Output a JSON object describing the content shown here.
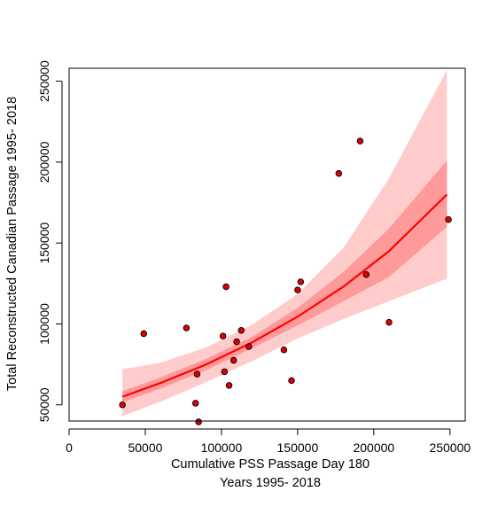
{
  "chart_data": {
    "type": "scatter",
    "title": "",
    "xlabel": "Cumulative PSS Passage Day  180",
    "xlabel2": "Years 1995- 2018",
    "ylabel": "Total Reconstructed Canadian Passage 1995- 2018",
    "xlim": [
      0,
      260000
    ],
    "ylim": [
      40000,
      258000
    ],
    "x_ticks": [
      "0",
      "50000",
      "100000",
      "150000",
      "200000",
      "250000"
    ],
    "y_ticks": [
      "50000",
      "100000",
      "150000",
      "200000",
      "250000"
    ],
    "grid": false,
    "colors": {
      "points": "#e00000",
      "point_border": "#000000",
      "fit_line": "#ff0000",
      "band_inner": "#ff9a9a",
      "band_outer": "#ffcccc"
    },
    "points": [
      {
        "x": 35000,
        "y": 50000
      },
      {
        "x": 49000,
        "y": 94000
      },
      {
        "x": 77000,
        "y": 97500
      },
      {
        "x": 83000,
        "y": 51000
      },
      {
        "x": 84000,
        "y": 69000
      },
      {
        "x": 85000,
        "y": 39500
      },
      {
        "x": 101000,
        "y": 92500
      },
      {
        "x": 102000,
        "y": 70500
      },
      {
        "x": 103000,
        "y": 123000
      },
      {
        "x": 105000,
        "y": 62000
      },
      {
        "x": 108000,
        "y": 77500
      },
      {
        "x": 110000,
        "y": 89000
      },
      {
        "x": 113000,
        "y": 96000
      },
      {
        "x": 118000,
        "y": 86000
      },
      {
        "x": 141000,
        "y": 84000
      },
      {
        "x": 146000,
        "y": 65000
      },
      {
        "x": 150000,
        "y": 121000
      },
      {
        "x": 152000,
        "y": 126000
      },
      {
        "x": 177000,
        "y": 193000
      },
      {
        "x": 191000,
        "y": 213000
      },
      {
        "x": 195000,
        "y": 130500
      },
      {
        "x": 210000,
        "y": 101000
      },
      {
        "x": 249000,
        "y": 164500
      }
    ],
    "fit": {
      "x": [
        35000,
        60000,
        90000,
        120000,
        150000,
        180000,
        210000,
        248000
      ],
      "y": [
        55000,
        63500,
        75000,
        88500,
        104500,
        123000,
        145000,
        180000
      ],
      "inner_lower": [
        51500,
        60000,
        71500,
        85000,
        99000,
        114000,
        129000,
        160000
      ],
      "inner_upper": [
        58500,
        67000,
        78500,
        92000,
        110000,
        132000,
        159000,
        201000
      ],
      "outer_lower": [
        43000,
        52000,
        64000,
        77000,
        91000,
        103000,
        114000,
        128000
      ],
      "outer_upper": [
        72000,
        76000,
        85500,
        99500,
        118500,
        147000,
        190000,
        257000
      ]
    }
  }
}
